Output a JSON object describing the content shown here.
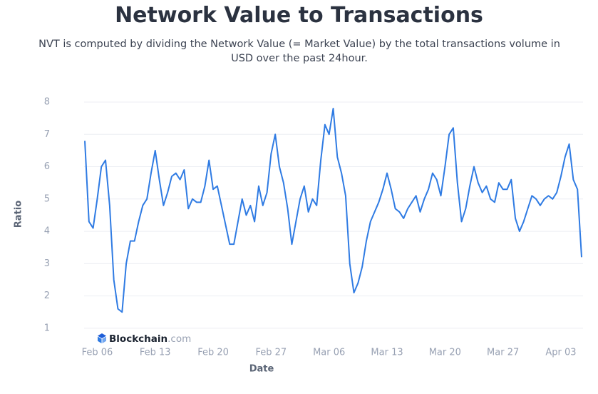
{
  "chart_data": {
    "type": "line",
    "title": "Network Value to Transactions",
    "subtitle": "NVT is computed by dividing the Network Value (= Market Value) by the total transactions volume in USD over the past 24hour.",
    "xlabel": "Date",
    "ylabel": "Ratio",
    "watermark": {
      "name": "Blockchain",
      "suffix": ".com"
    },
    "categories": [
      null,
      null,
      null,
      "Feb 06",
      null,
      null,
      null,
      null,
      null,
      null,
      null,
      null,
      null,
      null,
      null,
      null,
      null,
      "Feb 13",
      null,
      null,
      null,
      null,
      null,
      null,
      null,
      null,
      null,
      null,
      null,
      null,
      null,
      "Feb 20",
      null,
      null,
      null,
      null,
      null,
      null,
      null,
      null,
      null,
      null,
      null,
      null,
      null,
      "Feb 27",
      null,
      null,
      null,
      null,
      null,
      null,
      null,
      null,
      null,
      null,
      null,
      null,
      null,
      "Mar 06",
      null,
      null,
      null,
      null,
      null,
      null,
      null,
      null,
      null,
      null,
      null,
      null,
      null,
      "Mar 13",
      null,
      null,
      null,
      null,
      null,
      null,
      null,
      null,
      null,
      null,
      null,
      null,
      null,
      "Mar 20",
      null,
      null,
      null,
      null,
      null,
      null,
      null,
      null,
      null,
      null,
      null,
      null,
      null,
      "Mar 27",
      null,
      null,
      null,
      null,
      null,
      null,
      null,
      null,
      null,
      null,
      null,
      null,
      null,
      "Apr 03",
      null,
      null,
      null,
      null,
      null
    ],
    "series": [
      {
        "name": "NVT",
        "color": "#2f7be3",
        "values": [
          6.8,
          4.3,
          4.1,
          5.0,
          6.0,
          6.2,
          4.8,
          2.5,
          1.6,
          1.5,
          3.0,
          3.7,
          3.7,
          4.3,
          4.8,
          5.0,
          5.8,
          6.5,
          5.6,
          4.8,
          5.2,
          5.7,
          5.8,
          5.6,
          5.9,
          4.7,
          5.0,
          4.9,
          4.9,
          5.4,
          6.2,
          5.3,
          5.4,
          4.8,
          4.2,
          3.6,
          3.6,
          4.3,
          5.0,
          4.5,
          4.8,
          4.3,
          5.4,
          4.8,
          5.2,
          6.4,
          7.0,
          6.0,
          5.5,
          4.7,
          3.6,
          4.3,
          5.0,
          5.4,
          4.6,
          5.0,
          4.8,
          6.2,
          7.3,
          7.0,
          7.8,
          6.3,
          5.8,
          5.1,
          3.0,
          2.1,
          2.4,
          2.9,
          3.7,
          4.3,
          4.6,
          4.9,
          5.3,
          5.8,
          5.3,
          4.7,
          4.6,
          4.4,
          4.7,
          4.9,
          5.1,
          4.6,
          5.0,
          5.3,
          5.8,
          5.6,
          5.1,
          6.0,
          7.0,
          7.2,
          5.5,
          4.3,
          4.7,
          5.4,
          6.0,
          5.5,
          5.2,
          5.4,
          5.0,
          4.9,
          5.5,
          5.3,
          5.3,
          5.6,
          4.4,
          4.0,
          4.3,
          4.7,
          5.1,
          5.0,
          4.8,
          5.0,
          5.1,
          5.0,
          5.2,
          5.7,
          6.3,
          6.7,
          5.6,
          5.3,
          3.2
        ]
      }
    ],
    "ylim": [
      0.6,
      8.3
    ],
    "yticks": [
      1,
      2,
      3,
      4,
      5,
      6,
      7,
      8
    ],
    "grid": true
  }
}
